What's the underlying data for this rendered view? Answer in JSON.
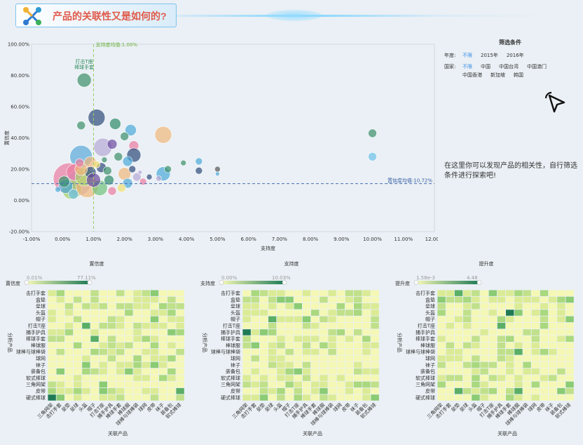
{
  "header": {
    "title": "产品的关联性又是如何的?"
  },
  "filter": {
    "title": "筛选条件",
    "year_label": "年度:",
    "year_options": [
      "不限",
      "2015年",
      "2016年"
    ],
    "year_active": 0,
    "country_label": "国家:",
    "country_options": [
      "不限",
      "中国",
      "中国台湾",
      "中国澳门",
      "中国香港",
      "新加坡",
      "韩国"
    ],
    "country_active": 0
  },
  "hint": "在这里你可以发现产品的相关性，自行筛选条件进行探索吧!",
  "colors": {
    "heat_low": "#f5f8b5",
    "heat_mid": "#a9d87e",
    "heat_high": "#1e7a55",
    "ref_support": "#9ccf62",
    "ref_conf": "#4a6fb5"
  },
  "chart_data": [
    {
      "type": "scatter",
      "xlabel": "支持度",
      "ylabel": "置信度",
      "x_ticks": [
        "-1.00%",
        "0.00%",
        "1.00%",
        "2.00%",
        "3.00%",
        "4.00%",
        "5.00%",
        "6.00%",
        "7.00%",
        "8.00%",
        "9.00%",
        "10.00%",
        "11.00%",
        "12.00%"
      ],
      "y_ticks": [
        "-20.00%",
        "0.00%",
        "20.00%",
        "40.00%",
        "60.00%",
        "80.00%",
        "100.00%"
      ],
      "xlim": [
        -1,
        12
      ],
      "ylim": [
        -20,
        100
      ],
      "ref_lines": [
        {
          "axis": "x",
          "value": 1.0,
          "label": "支持度均值:1.00%"
        },
        {
          "axis": "y",
          "value": 10.72,
          "label": "置信度均值:10.72%"
        }
      ],
      "annotation": {
        "text": [
          "打击T座",
          "棒球手套"
        ],
        "x": 0.7,
        "y": 77
      },
      "points": [
        {
          "x": 0.7,
          "y": 77,
          "s": 10,
          "c": "#3a8f6a"
        },
        {
          "x": 0.6,
          "y": 48,
          "s": 6,
          "c": "#3a8f6a"
        },
        {
          "x": 1.1,
          "y": 53,
          "s": 12,
          "c": "#2e4a7a"
        },
        {
          "x": 1.7,
          "y": 49,
          "s": 8,
          "c": "#2e8a6a"
        },
        {
          "x": 2.2,
          "y": 45,
          "s": 8,
          "c": "#4aa9d8"
        },
        {
          "x": 3.25,
          "y": 42,
          "s": 12,
          "c": "#f0b77a"
        },
        {
          "x": 2.3,
          "y": 35,
          "s": 7,
          "c": "#ea7aa0"
        },
        {
          "x": 2.0,
          "y": 41,
          "s": 6,
          "c": "#3a8f6a"
        },
        {
          "x": 0.6,
          "y": 28,
          "s": 16,
          "c": "#5aa8d8"
        },
        {
          "x": 1.3,
          "y": 34,
          "s": 13,
          "c": "#b5a8d6"
        },
        {
          "x": 1.6,
          "y": 36,
          "s": 7,
          "c": "#6b4aa0"
        },
        {
          "x": 2.3,
          "y": 29,
          "s": 10,
          "c": "#2e4a7a"
        },
        {
          "x": 2.1,
          "y": 25,
          "s": 7,
          "c": "#4aa9d8"
        },
        {
          "x": 1.8,
          "y": 28,
          "s": 6,
          "c": "#3a8f6a"
        },
        {
          "x": 0.9,
          "y": 24,
          "s": 9,
          "c": "#f0b77a"
        },
        {
          "x": 1.25,
          "y": 21,
          "s": 7,
          "c": "#2e4a7a"
        },
        {
          "x": 1.45,
          "y": 19,
          "s": 6,
          "c": "#3a8f6a"
        },
        {
          "x": 2.0,
          "y": 17,
          "s": 9,
          "c": "#f0b77a"
        },
        {
          "x": 2.25,
          "y": 20,
          "s": 5,
          "c": "#2e4a7a"
        },
        {
          "x": 2.4,
          "y": 15,
          "s": 6,
          "c": "#b5a8d6"
        },
        {
          "x": 3.25,
          "y": 17,
          "s": 10,
          "c": "#4aa9d8"
        },
        {
          "x": 3.4,
          "y": 20,
          "s": 5,
          "c": "#3a8f6a"
        },
        {
          "x": 3.1,
          "y": 14,
          "s": 4,
          "c": "#b5a8d6"
        },
        {
          "x": 3.9,
          "y": 24,
          "s": 4,
          "c": "#3a8f6a"
        },
        {
          "x": 4.4,
          "y": 25,
          "s": 5,
          "c": "#4aa9d8"
        },
        {
          "x": 4.4,
          "y": 19,
          "s": 5,
          "c": "#2e4a7a"
        },
        {
          "x": 5.0,
          "y": 20,
          "s": 4,
          "c": "#555555"
        },
        {
          "x": 5.0,
          "y": 17,
          "s": 3,
          "c": "#4aa9d8"
        },
        {
          "x": 10.0,
          "y": 43,
          "s": 6,
          "c": "#3a8f6a"
        },
        {
          "x": 10.0,
          "y": 28,
          "s": 6,
          "c": "#6cc0ea"
        },
        {
          "x": 0.2,
          "y": 14,
          "s": 22,
          "c": "#ea7aa0"
        },
        {
          "x": 0.5,
          "y": 11,
          "s": 18,
          "c": "#b5a8d6"
        },
        {
          "x": 0.3,
          "y": 7,
          "s": 14,
          "c": "#9ccf62"
        },
        {
          "x": 0.8,
          "y": 9,
          "s": 16,
          "c": "#f0b77a"
        },
        {
          "x": 0.1,
          "y": 9,
          "s": 10,
          "c": "#4aa9d8"
        },
        {
          "x": 0.4,
          "y": 18,
          "s": 12,
          "c": "#ea7aa0"
        },
        {
          "x": 0.7,
          "y": 15,
          "s": 13,
          "c": "#a8d870"
        },
        {
          "x": 1.2,
          "y": 8,
          "s": 11,
          "c": "#6fc27a"
        },
        {
          "x": 1.6,
          "y": 6,
          "s": 6,
          "c": "#ea7aa0"
        },
        {
          "x": 2.1,
          "y": 11,
          "s": 7,
          "c": "#4aa9d8"
        },
        {
          "x": 1.9,
          "y": 8,
          "s": 6,
          "c": "#f0e070"
        },
        {
          "x": 0.9,
          "y": 18,
          "s": 8,
          "c": "#2e4a7a"
        },
        {
          "x": 0.05,
          "y": 12,
          "s": 8,
          "c": "#3a8f6a"
        },
        {
          "x": 0.6,
          "y": 20,
          "s": 9,
          "c": "#f0b77a"
        },
        {
          "x": 1.0,
          "y": 13,
          "s": 10,
          "c": "#6b4aa0"
        },
        {
          "x": 1.5,
          "y": 13,
          "s": 7,
          "c": "#2e8a6a"
        },
        {
          "x": 2.6,
          "y": 12,
          "s": 5,
          "c": "#ea7aa0"
        },
        {
          "x": 2.8,
          "y": 15,
          "s": 4,
          "c": "#2e4a7a"
        },
        {
          "x": 1.1,
          "y": 23,
          "s": 5,
          "c": "#f0e070"
        },
        {
          "x": 0.35,
          "y": 4,
          "s": 7,
          "c": "#6cc0ea"
        },
        {
          "x": 0.55,
          "y": 24,
          "s": 6,
          "c": "#ea7aa0"
        },
        {
          "x": 1.35,
          "y": 26,
          "s": 4,
          "c": "#3a8f6a"
        },
        {
          "x": 2.5,
          "y": 18,
          "s": 3,
          "c": "#b5a8d6"
        },
        {
          "x": -0.15,
          "y": 7,
          "s": 4,
          "c": "#4aa9d8"
        }
      ]
    },
    {
      "type": "heatmap",
      "title": "置信度",
      "legend_label": "置信度",
      "range_labels": [
        "0.01%",
        "77.11%"
      ],
      "ylabel": "分析产品",
      "xlabel": "关联产品",
      "y_categories": [
        "击打手套",
        "盒垫",
        "垒球",
        "头盔",
        "帽子",
        "打击T座",
        "捕手护具",
        "棒球手套",
        "棒球服",
        "球棒与球棒袋",
        "球网",
        "袜子",
        "装备包",
        "软式棒球",
        "三角网架",
        "皮带",
        "硬式棒球"
      ],
      "x_categories": [
        "三角网架",
        "击打手套",
        "垒垫",
        "垒球",
        "头盔",
        "帽子",
        "打击T座",
        "捕手护具",
        "棒球手套",
        "棒球服",
        "球棒与球棒袋",
        "球网",
        "皮带",
        "袜子",
        "装备包",
        "软式棒球"
      ],
      "seed": 11
    },
    {
      "type": "heatmap",
      "title": "支持度",
      "legend_label": "支持度",
      "range_labels": [
        "0.00%",
        "10.03%"
      ],
      "ylabel": "分析产品",
      "xlabel": "关联产品",
      "y_categories": [
        "击打手套",
        "盒垫",
        "垒球",
        "头盔",
        "帽子",
        "打击T座",
        "捕手护具",
        "棒球手套",
        "棒球服",
        "球棒与球棒袋",
        "球网",
        "袜子",
        "装备包",
        "软式棒球",
        "三角网架",
        "皮带",
        "硬式棒球"
      ],
      "x_categories": [
        "三角网架",
        "击打手套",
        "垒垫",
        "垒球",
        "头盔",
        "帽子",
        "打击T座",
        "捕手护具",
        "棒球手套",
        "棒球服",
        "球棒与球棒袋",
        "球网",
        "皮带",
        "袜子",
        "装备包",
        "软式棒球"
      ],
      "seed": 23
    },
    {
      "type": "heatmap",
      "title": "提升度",
      "legend_label": "提升度",
      "range_labels": [
        "1.58e-3",
        "4.48"
      ],
      "ylabel": "分析产品",
      "xlabel": "关联产品",
      "y_categories": [
        "击打手套",
        "盒垫",
        "垒球",
        "头盔",
        "帽子",
        "打击T座",
        "捕手护具",
        "棒球手套",
        "棒球服",
        "球棒与球棒袋",
        "球网",
        "袜子",
        "装备包",
        "软式棒球",
        "三角网架",
        "皮带",
        "硬式棒球"
      ],
      "x_categories": [
        "三角网架",
        "击打手套",
        "垒垫",
        "垒球",
        "头盔",
        "帽子",
        "打击T座",
        "捕手护具",
        "棒球手套",
        "棒球服",
        "球棒与球棒袋",
        "球网",
        "皮带",
        "袜子",
        "装备包",
        "软式棒球"
      ],
      "seed": 37
    }
  ]
}
